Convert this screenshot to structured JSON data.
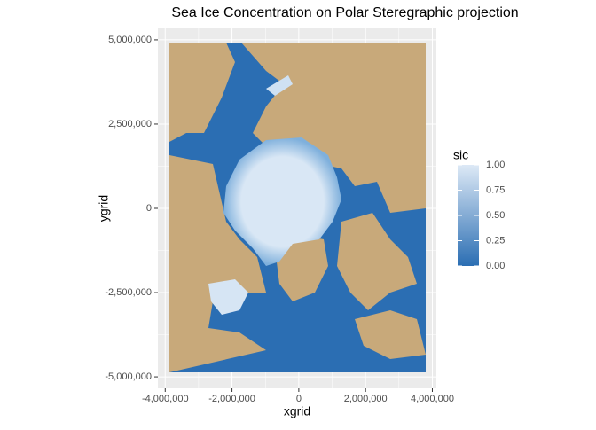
{
  "chart_data": {
    "type": "raster",
    "title": "Sea Ice Concentration on Polar Steregraphic projection",
    "x_label": "xgrid",
    "y_label": "ygrid",
    "xlim": [
      -4220000,
      4120000
    ],
    "ylim": [
      -5340000,
      5340000
    ],
    "xticks": [
      {
        "value": -4000000,
        "label": "-4,000,000"
      },
      {
        "value": -2000000,
        "label": "-2,000,000"
      },
      0,
      {
        "value": 2000000,
        "label": "2,000,000"
      },
      {
        "value": 4000000,
        "label": "4,000,000"
      }
    ],
    "yticks": [
      {
        "value": -5000000,
        "label": "-5,000,000"
      },
      {
        "value": -2500000,
        "label": "-2,500,000"
      },
      0,
      {
        "value": 2500000,
        "label": "2,500,000"
      },
      {
        "value": 5000000,
        "label": "5,000,000"
      }
    ],
    "grid": true,
    "legend": {
      "title": "sic",
      "position": "right",
      "limits": [
        0,
        1
      ],
      "low_color": "#2b6eb3",
      "high_color": "#dde9f6",
      "ticks": [
        {
          "value": 0,
          "label": "0.00"
        },
        {
          "value": 0.25,
          "label": "0.25"
        },
        {
          "value": 0.5,
          "label": "0.50"
        },
        {
          "value": 0.75,
          "label": "0.75"
        },
        {
          "value": 1,
          "label": "1.00"
        }
      ]
    }
  }
}
